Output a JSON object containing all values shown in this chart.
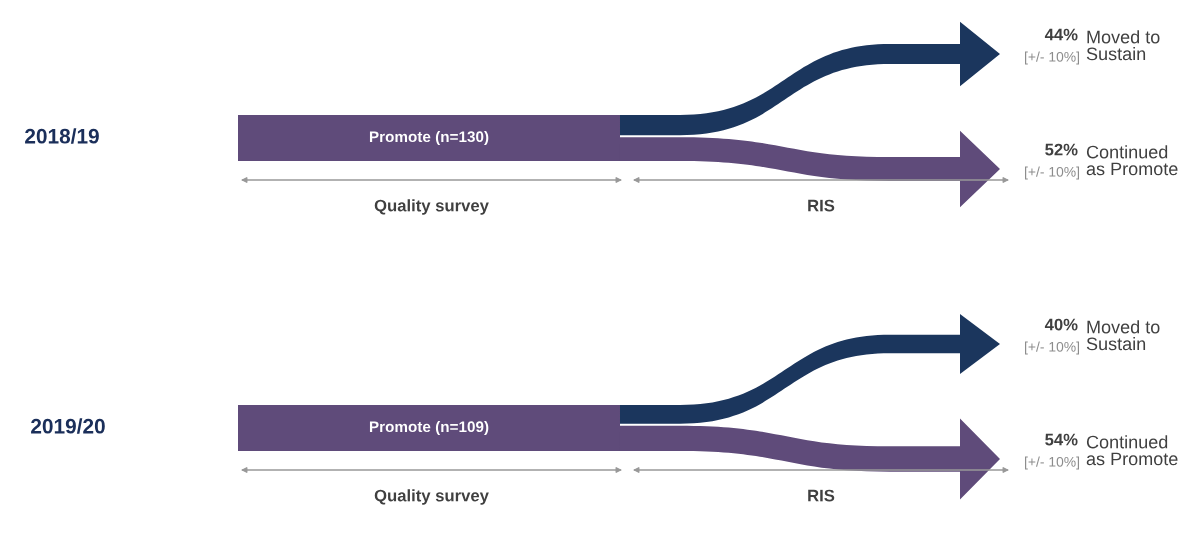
{
  "chart_data": [
    {
      "type": "other",
      "title": "2018/19",
      "categories": [
        "Moved to\nSustain",
        "Continued\nas Promote"
      ],
      "values": [
        44,
        52
      ],
      "colors": [
        "#1b365d",
        "#5f4b7a"
      ],
      "value_labels": [
        "44%",
        "52%"
      ],
      "annotations": [
        "Promote (n=130)",
        "Quality survey",
        "RIS",
        "[+/- 10%]",
        "[+/- 10%]"
      ]
    },
    {
      "type": "other",
      "title": "2019/20",
      "categories": [
        "Moved to\nSustain",
        "Continued\nas Promote"
      ],
      "values": [
        40,
        54
      ],
      "colors": [
        "#1b365d",
        "#5f4b7a"
      ],
      "value_labels": [
        "40%",
        "54%"
      ],
      "annotations": [
        "Promote (n=109)",
        "Quality survey",
        "RIS",
        "[+/- 10%]",
        "[+/- 10%]"
      ]
    }
  ]
}
